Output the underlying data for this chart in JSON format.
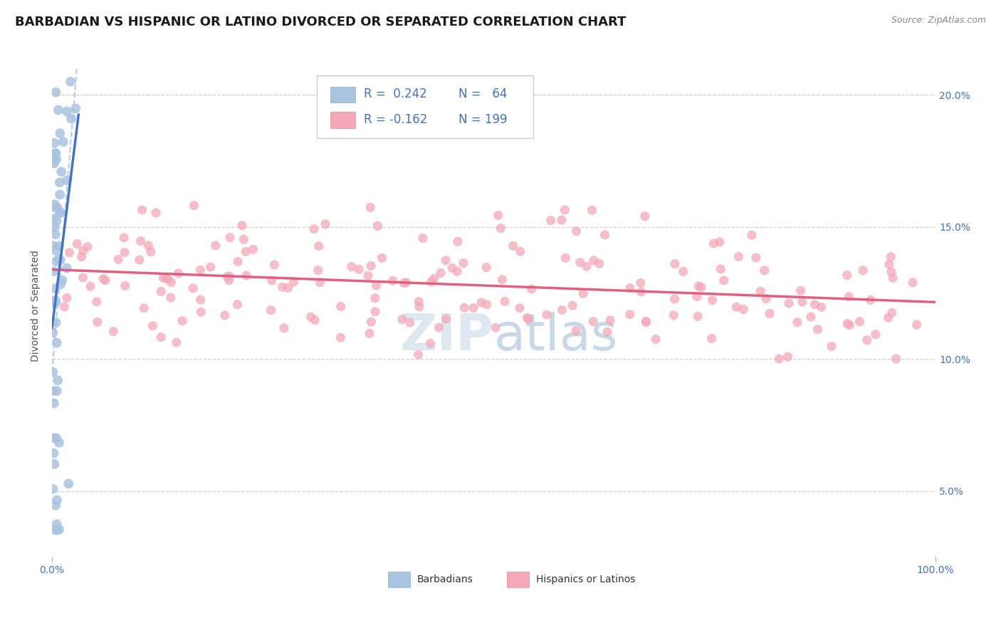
{
  "title": "BARBADIAN VS HISPANIC OR LATINO DIVORCED OR SEPARATED CORRELATION CHART",
  "source_text": "Source: ZipAtlas.com",
  "ylabel": "Divorced or Separated",
  "ylabel_right_ticks": [
    "5.0%",
    "10.0%",
    "15.0%",
    "20.0%"
  ],
  "ylabel_right_values": [
    0.05,
    0.1,
    0.15,
    0.2
  ],
  "xlim": [
    0.0,
    1.0
  ],
  "ylim": [
    0.025,
    0.215
  ],
  "blue_color": "#a8c4e0",
  "pink_color": "#f4a8b8",
  "blue_line_color": "#4472c4",
  "pink_line_color": "#e06080",
  "dash_line_color": "#a8c4e0",
  "legend_text_color": "#4472c4",
  "title_fontsize": 13,
  "axis_label_fontsize": 10,
  "tick_fontsize": 10,
  "background_color": "#ffffff",
  "watermark_color": "#dde8f0",
  "r1": "0.242",
  "n1": "64",
  "r2": "-0.162",
  "n2": "199"
}
